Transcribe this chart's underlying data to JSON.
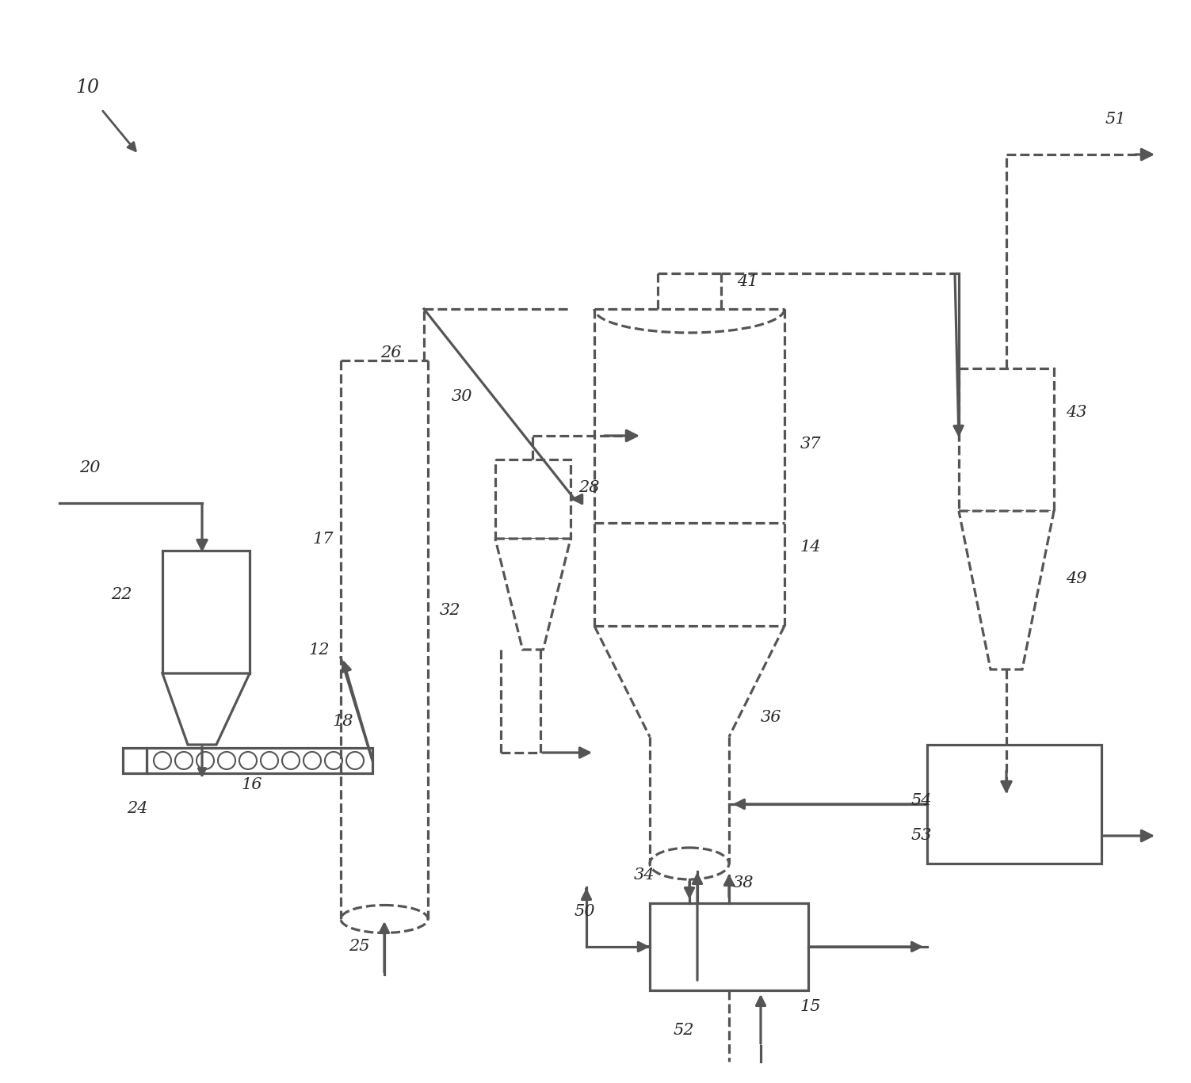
{
  "line_color": "#555555",
  "line_width": 2.3,
  "label_fontsize": 15
}
